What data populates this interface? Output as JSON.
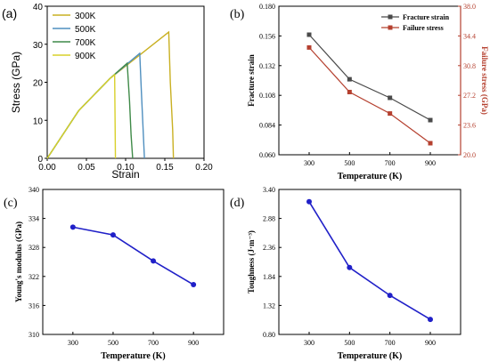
{
  "chart_data": [
    {
      "panel": "(a)",
      "type": "line",
      "xlabel": "Strain",
      "ylabel": "Stress (GPa)",
      "xlim": [
        0,
        0.2
      ],
      "ylim": [
        0,
        40
      ],
      "xticks": [
        "0.00",
        "0.05",
        "0.10",
        "0.15",
        "0.20"
      ],
      "yticks": [
        "0",
        "10",
        "20",
        "30",
        "40"
      ],
      "legend_position": "top-left",
      "series": [
        {
          "name": "300K",
          "color": "#c9b022",
          "x": [
            0,
            0.04,
            0.08,
            0.12,
            0.155,
            0.157,
            0.16,
            0.161
          ],
          "y": [
            0,
            12.5,
            21,
            27.5,
            33.2,
            20,
            7.5,
            0
          ]
        },
        {
          "name": "500K",
          "color": "#4f8fbf",
          "x": [
            0,
            0.04,
            0.08,
            0.118,
            0.12,
            0.122,
            0.124
          ],
          "y": [
            0,
            12.5,
            21,
            27.6,
            18,
            9,
            0
          ]
        },
        {
          "name": "700K",
          "color": "#3f8a48",
          "x": [
            0,
            0.04,
            0.08,
            0.102,
            0.105,
            0.107,
            0.109
          ],
          "y": [
            0,
            12.5,
            21,
            25,
            15,
            6,
            0
          ]
        },
        {
          "name": "900K",
          "color": "#d8d02a",
          "x": [
            0,
            0.04,
            0.08,
            0.086,
            0.087
          ],
          "y": [
            0,
            12.5,
            21,
            22,
            0
          ]
        }
      ]
    },
    {
      "panel": "(b)",
      "type": "line",
      "xlabel": "Temperature (K)",
      "ylabel": "Fracture strain",
      "y2label": "Failure stress (GPa)",
      "categories": [
        "300",
        "500",
        "700",
        "900"
      ],
      "x": [
        300,
        500,
        700,
        900
      ],
      "ylim": [
        0.06,
        0.18
      ],
      "yticks": [
        "0.060",
        "0.084",
        "0.108",
        "0.132",
        "0.156",
        "0.180"
      ],
      "y2lim": [
        20.0,
        38.0
      ],
      "y2ticks": [
        "20.0",
        "23.6",
        "27.2",
        "30.8",
        "34.4",
        "38.0"
      ],
      "legend_position": "top-right",
      "series": [
        {
          "name": "Fracture strain",
          "color": "#4a4a4a",
          "axis": "left",
          "values": [
            0.157,
            0.121,
            0.106,
            0.088
          ]
        },
        {
          "name": "Failure stress",
          "color": "#b5402f",
          "axis": "right",
          "values": [
            33.0,
            27.6,
            25.0,
            21.4
          ]
        }
      ]
    },
    {
      "panel": "(c)",
      "type": "line",
      "xlabel": "Temperature (K)",
      "ylabel": "Young's modulus (GPa)",
      "categories": [
        "300",
        "500",
        "700",
        "900"
      ],
      "x": [
        300,
        500,
        700,
        900
      ],
      "ylim": [
        310,
        340
      ],
      "yticks": [
        "310",
        "316",
        "322",
        "328",
        "334",
        "340"
      ],
      "series": [
        {
          "color": "#2020c8",
          "values": [
            332.2,
            330.6,
            325.2,
            320.3
          ]
        }
      ]
    },
    {
      "panel": "(d)",
      "type": "line",
      "xlabel": "Temperature (K)",
      "ylabel": "Toughness (J·m⁻³)",
      "categories": [
        "300",
        "500",
        "700",
        "900"
      ],
      "x": [
        300,
        500,
        700,
        900
      ],
      "ylim": [
        0.8,
        3.4
      ],
      "yticks": [
        "0.80",
        "1.32",
        "1.84",
        "2.36",
        "2.88",
        "3.40"
      ],
      "series": [
        {
          "color": "#2020c8",
          "values": [
            3.18,
            2.0,
            1.5,
            1.07
          ]
        }
      ]
    }
  ]
}
